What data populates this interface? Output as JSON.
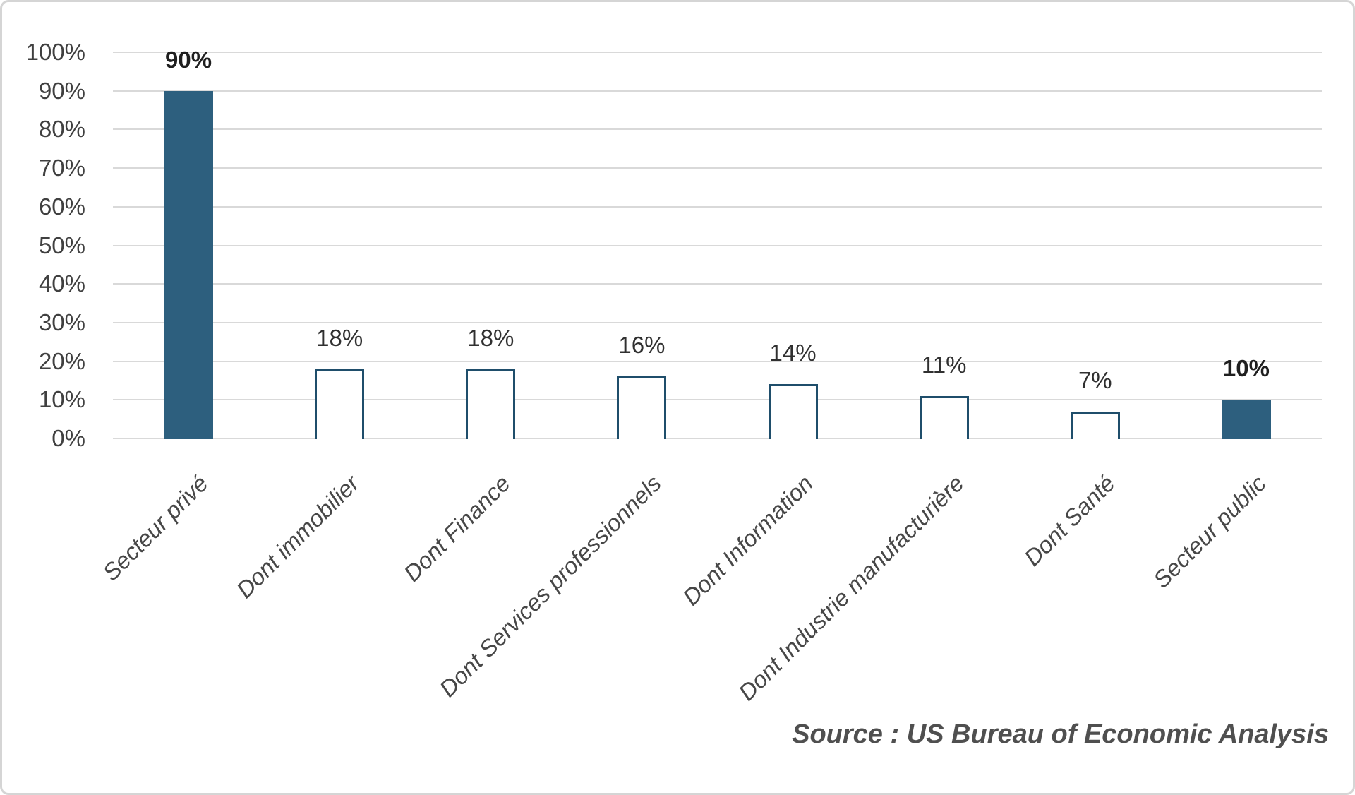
{
  "chart_data": {
    "type": "bar",
    "title": "",
    "xlabel": "",
    "ylabel": "",
    "categories": [
      "Secteur privé",
      "Dont immobilier",
      "Dont Finance",
      "Dont Services professionnels",
      "Dont Information",
      "Dont Industrie manufacturière",
      "Dont Santé",
      "Secteur public"
    ],
    "values": [
      90,
      18,
      18,
      16,
      14,
      11,
      7,
      10
    ],
    "value_labels": [
      "90%",
      "18%",
      "18%",
      "16%",
      "14%",
      "11%",
      "7%",
      "10%"
    ],
    "emphasized": [
      true,
      false,
      false,
      false,
      false,
      false,
      false,
      true
    ],
    "ylim": [
      0,
      100
    ],
    "ytick_labels": [
      "0%",
      "10%",
      "20%",
      "30%",
      "40%",
      "50%",
      "60%",
      "70%",
      "80%",
      "90%",
      "100%"
    ],
    "grid": true,
    "legend": null,
    "colors": {
      "bar_fill": "#2d5f7e",
      "bar_border": "#1f4e6b",
      "hollow_fill": "#ffffff",
      "gridline": "#d9d9d9",
      "axis_text": "#404040",
      "label_text": "#303030",
      "source_text": "#4f4f4f"
    },
    "source_note": "Source : US Bureau of Economic Analysis"
  }
}
